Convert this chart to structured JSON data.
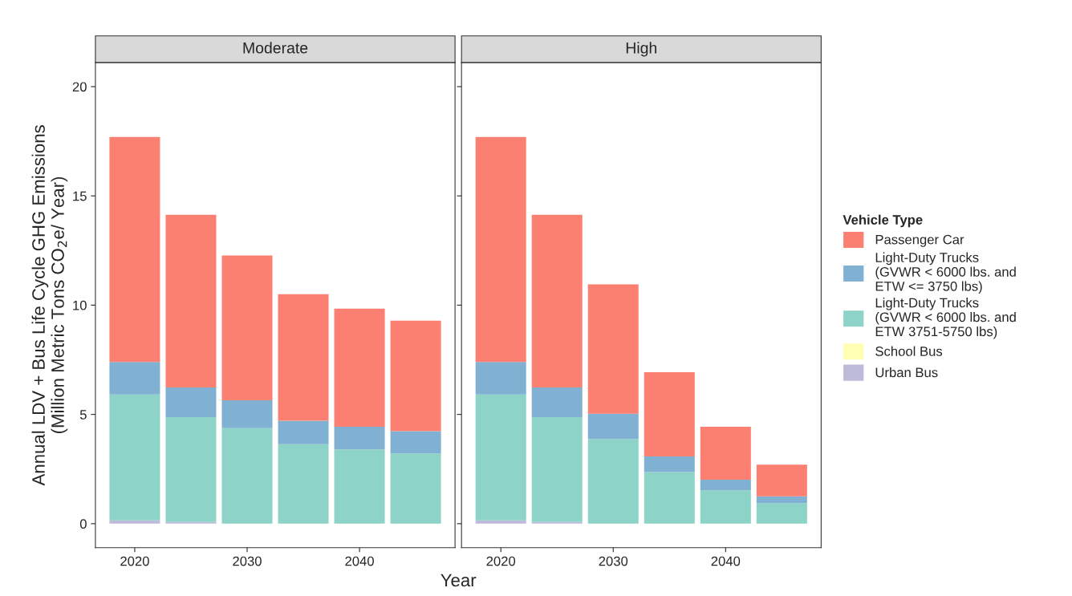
{
  "chart_data": [
    {
      "type": "bar",
      "stacked": true,
      "title": "Moderate",
      "xlabel": "Year",
      "ylabel": "Annual LDV + Bus Life Cycle GHG Emissions\n(Million Metric Tons CO$_{2}$e/ Year)",
      "legend_title": "Vehicle Type",
      "x": [
        2020,
        2025,
        2030,
        2035,
        2040,
        2045
      ],
      "xlim": [
        2016.5,
        2048.5
      ],
      "xticks": [
        2020,
        2030,
        2040
      ],
      "ylim": [
        -1.1,
        21.1
      ],
      "yticks": [
        0,
        5,
        10,
        15,
        20
      ],
      "grid": false,
      "legend": "right",
      "series": [
        {
          "name": "Urban Bus",
          "color": "#bebada",
          "values": [
            0.15,
            0.08,
            0,
            0,
            0,
            0
          ]
        },
        {
          "name": "School Bus",
          "color": "#ffffb3",
          "values": [
            null,
            null,
            0,
            0,
            0,
            0
          ]
        },
        {
          "name": "Light-Duty Trucks\n(GVWR < 6000 lbs. and\nETW 3751-5750 lbs)",
          "color": "#8dd3c7",
          "values": [
            5.76,
            4.8,
            4.37,
            3.64,
            3.4,
            3.22
          ]
        },
        {
          "name": "Light-Duty Trucks\n(GVWR < 6000 lbs. and\nETW <= 3750 lbs)",
          "color": "#80b1d3",
          "values": [
            1.49,
            1.35,
            1.28,
            1.07,
            1.04,
            1.01
          ]
        },
        {
          "name": "Passenger Car",
          "color": "#fb8072",
          "values": [
            10.3,
            7.91,
            6.62,
            5.79,
            5.4,
            5.06
          ]
        }
      ]
    },
    {
      "type": "bar",
      "stacked": true,
      "title": "High",
      "x": [
        2020,
        2025,
        2030,
        2035,
        2040,
        2045
      ],
      "xlim": [
        2016.5,
        2048.5
      ],
      "xticks": [
        2020,
        2030,
        2040
      ],
      "ylim": [
        -1.1,
        21.1
      ],
      "yticks": [
        0,
        5,
        10,
        15,
        20
      ],
      "tick_labels": "x",
      "grid": false,
      "series": [
        {
          "color": "#bebada",
          "values": [
            0.15,
            0.08,
            0,
            0,
            0,
            0
          ]
        },
        {
          "color": "#ffffb3",
          "values": [
            null,
            null,
            0,
            0,
            0,
            0
          ]
        },
        {
          "color": "#8dd3c7",
          "values": [
            5.76,
            4.8,
            3.88,
            2.36,
            1.53,
            0.94
          ]
        },
        {
          "color": "#80b1d3",
          "values": [
            1.49,
            1.35,
            1.15,
            0.72,
            0.48,
            0.31
          ]
        },
        {
          "color": "#fb8072",
          "values": [
            10.3,
            7.91,
            5.92,
            3.85,
            2.43,
            1.45
          ]
        }
      ]
    }
  ]
}
